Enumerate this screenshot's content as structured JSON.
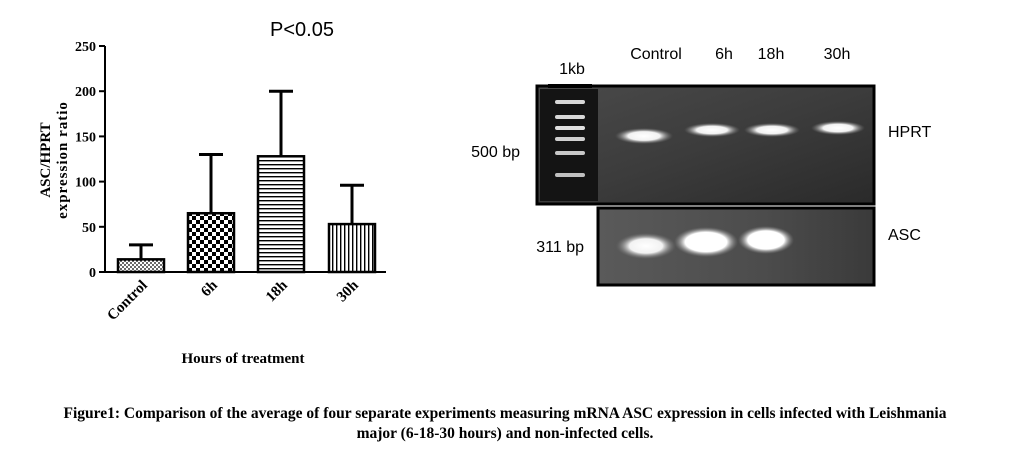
{
  "chart_data": {
    "type": "bar",
    "title": "P<0.05",
    "ylabel_line1": "ASC/HPRT",
    "ylabel_line2": "expression ratio",
    "xlabel": "Hours of treatment",
    "categories": [
      "Control",
      "6h",
      "18h",
      "30h"
    ],
    "values": [
      14,
      65,
      128,
      53
    ],
    "errors_upper": [
      30,
      130,
      200,
      96
    ],
    "ylim": [
      0,
      250
    ],
    "yticks": [
      0,
      50,
      100,
      150,
      200,
      250
    ],
    "patterns": [
      "fine-dots",
      "checker",
      "horizontal-lines",
      "vertical-lines"
    ],
    "grid": false
  },
  "gel": {
    "ladder_label": "1kb",
    "lane_labels": [
      "Control",
      "6h",
      "18h",
      "30h"
    ],
    "top_band_size": "500 bp",
    "bottom_band_size": "311 bp",
    "top_gene": "HPRT",
    "bottom_gene": "ASC"
  },
  "caption": {
    "line1": "Figure1: Comparison of the average of four separate experiments measuring mRNA ASC expression in cells infected with Leishmania",
    "line2": "major (6-18-30 hours) and non-infected cells."
  }
}
